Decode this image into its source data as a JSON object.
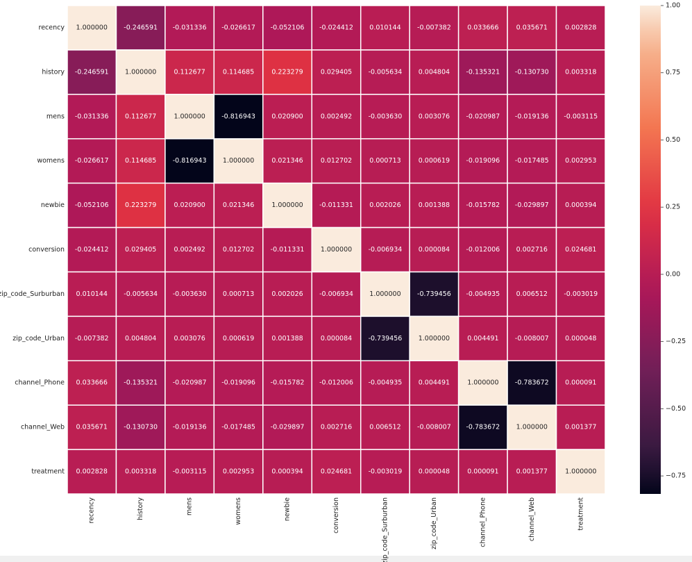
{
  "chart_data": {
    "type": "heatmap",
    "x_categories": [
      "recency",
      "history",
      "mens",
      "womens",
      "newbie",
      "conversion",
      "zip_code_Surburban",
      "zip_code_Urban",
      "channel_Phone",
      "channel_Web",
      "treatment"
    ],
    "y_categories": [
      "recency",
      "history",
      "mens",
      "womens",
      "newbie",
      "conversion",
      "zip_code_Surburban",
      "zip_code_Urban",
      "channel_Phone",
      "channel_Web",
      "treatment"
    ],
    "values": [
      [
        1,
        -0.246591,
        -0.031336,
        -0.026617,
        -0.052106,
        -0.024412,
        0.010144,
        -0.007382,
        0.033666,
        0.035671,
        0.002828
      ],
      [
        -0.246591,
        1,
        0.112677,
        0.114685,
        0.223279,
        0.029405,
        -0.005634,
        0.004804,
        -0.135321,
        -0.13073,
        0.003318
      ],
      [
        -0.031336,
        0.112677,
        1,
        -0.816943,
        0.0209,
        0.002492,
        -0.00363,
        0.003076,
        -0.020987,
        -0.019136,
        -0.003115
      ],
      [
        -0.026617,
        0.114685,
        -0.816943,
        1,
        0.021346,
        0.012702,
        0.000713,
        0.000619,
        -0.019096,
        -0.017485,
        0.002953
      ],
      [
        -0.052106,
        0.223279,
        0.0209,
        0.021346,
        1,
        -0.011331,
        0.002026,
        0.001388,
        -0.015782,
        -0.029897,
        0.000394
      ],
      [
        -0.024412,
        0.029405,
        0.002492,
        0.012702,
        -0.011331,
        1,
        -0.006934,
        8.4e-05,
        -0.012006,
        0.002716,
        0.024681
      ],
      [
        0.010144,
        -0.005634,
        -0.00363,
        0.000713,
        0.002026,
        -0.006934,
        1,
        -0.739456,
        -0.004935,
        0.006512,
        -0.003019
      ],
      [
        -0.007382,
        0.004804,
        0.003076,
        0.000619,
        0.001388,
        8.4e-05,
        -0.739456,
        1,
        0.004491,
        -0.008007,
        4.8e-05
      ],
      [
        0.033666,
        -0.135321,
        -0.020987,
        -0.019096,
        -0.015782,
        -0.012006,
        -0.004935,
        0.004491,
        1,
        -0.783672,
        9.1e-05
      ],
      [
        0.035671,
        -0.13073,
        -0.019136,
        -0.017485,
        -0.029897,
        0.002716,
        0.006512,
        -0.008007,
        -0.783672,
        1,
        0.001377
      ],
      [
        0.002828,
        0.003318,
        -0.003115,
        0.002953,
        0.000394,
        0.024681,
        -0.003019,
        4.8e-05,
        9.1e-05,
        0.001377,
        1
      ]
    ],
    "value_labels": [
      [
        "1.000000",
        "-0.246591",
        "-0.031336",
        "-0.026617",
        "-0.052106",
        "-0.024412",
        "0.010144",
        "-0.007382",
        "0.033666",
        "0.035671",
        "0.002828"
      ],
      [
        "-0.246591",
        "1.000000",
        "0.112677",
        "0.114685",
        "0.223279",
        "0.029405",
        "-0.005634",
        "0.004804",
        "-0.135321",
        "-0.130730",
        "0.003318"
      ],
      [
        "-0.031336",
        "0.112677",
        "1.000000",
        "-0.816943",
        "0.020900",
        "0.002492",
        "-0.003630",
        "0.003076",
        "-0.020987",
        "-0.019136",
        "-0.003115"
      ],
      [
        "-0.026617",
        "0.114685",
        "-0.816943",
        "1.000000",
        "0.021346",
        "0.012702",
        "0.000713",
        "0.000619",
        "-0.019096",
        "-0.017485",
        "0.002953"
      ],
      [
        "-0.052106",
        "0.223279",
        "0.020900",
        "0.021346",
        "1.000000",
        "-0.011331",
        "0.002026",
        "0.001388",
        "-0.015782",
        "-0.029897",
        "0.000394"
      ],
      [
        "-0.024412",
        "0.029405",
        "0.002492",
        "0.012702",
        "-0.011331",
        "1.000000",
        "-0.006934",
        "0.000084",
        "-0.012006",
        "0.002716",
        "0.024681"
      ],
      [
        "0.010144",
        "-0.005634",
        "-0.003630",
        "0.000713",
        "0.002026",
        "-0.006934",
        "1.000000",
        "-0.739456",
        "-0.004935",
        "0.006512",
        "-0.003019"
      ],
      [
        "-0.007382",
        "0.004804",
        "0.003076",
        "0.000619",
        "0.001388",
        "0.000084",
        "-0.739456",
        "1.000000",
        "0.004491",
        "-0.008007",
        "0.000048"
      ],
      [
        "0.033666",
        "-0.135321",
        "-0.020987",
        "-0.019096",
        "-0.015782",
        "-0.012006",
        "-0.004935",
        "0.004491",
        "1.000000",
        "-0.783672",
        "0.000091"
      ],
      [
        "0.035671",
        "-0.130730",
        "-0.019136",
        "-0.017485",
        "-0.029897",
        "0.002716",
        "0.006512",
        "-0.008007",
        "-0.783672",
        "1.000000",
        "0.001377"
      ],
      [
        "0.002828",
        "0.003318",
        "-0.003115",
        "0.002953",
        "0.000394",
        "0.024681",
        "-0.003019",
        "0.000048",
        "0.000091",
        "0.001377",
        "1.000000"
      ]
    ],
    "colormap": "rocket",
    "zlim": [
      -0.816943,
      1
    ],
    "zticks": [
      {
        "value": 1,
        "label": "1.00"
      },
      {
        "value": 0.75,
        "label": "0.75"
      },
      {
        "value": 0.5,
        "label": "0.50"
      },
      {
        "value": 0.25,
        "label": "0.25"
      },
      {
        "value": 0,
        "label": "0.00"
      },
      {
        "value": -0.25,
        "label": "−0.25"
      },
      {
        "value": -0.5,
        "label": "−0.50"
      },
      {
        "value": -0.75,
        "label": "−0.75"
      }
    ]
  }
}
